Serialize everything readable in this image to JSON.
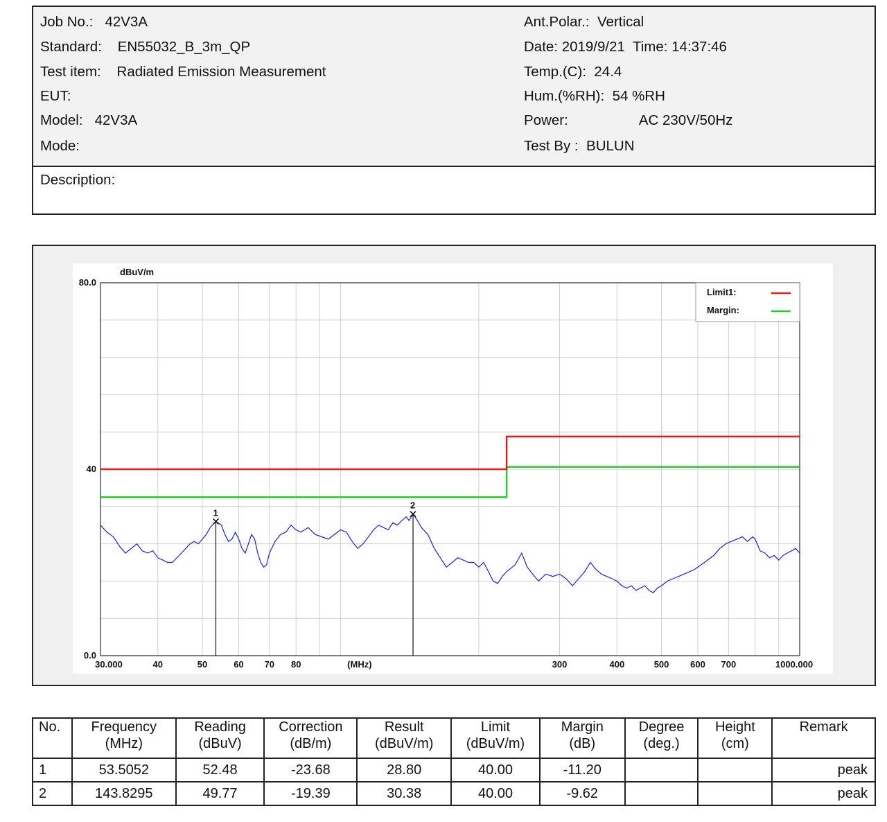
{
  "header": {
    "job_label": "Job No.:",
    "job_value": "42V3A",
    "standard_label": "Standard:",
    "standard_value": "EN55032_B_3m_QP",
    "test_item_label": "Test item:",
    "test_item_value": "Radiated Emission Measurement",
    "eut_label": "EUT:",
    "model_label": "Model:",
    "model_value": "42V3A",
    "mode_label": "Mode:",
    "ant_label": "Ant.Polar.:",
    "ant_value": "Vertical",
    "date_label": "Date:",
    "date_value": "2019/9/21",
    "time_label": "Time:",
    "time_value": "14:37:46",
    "temp_label": "Temp.(C):",
    "temp_value": "24.4",
    "hum_label": "Hum.(%RH):",
    "hum_value": "54 %RH",
    "power_label": "Power:",
    "power_value": "AC 230V/50Hz",
    "testby_label": "Test By :",
    "testby_value": "BULUN",
    "description_label": "Description:"
  },
  "chart_data": {
    "type": "line",
    "x_scale": "log",
    "xlim": [
      30,
      1000
    ],
    "ylim": [
      0,
      80
    ],
    "ylabel": "dBuV/m",
    "xlabel": "(MHz)",
    "y_tick_labels": [
      {
        "v": 80,
        "t": "80.0"
      },
      {
        "v": 40,
        "t": "40"
      },
      {
        "v": 0,
        "t": "0.0"
      }
    ],
    "x_tick_labels": [
      {
        "v": 30,
        "t": "30.000"
      },
      {
        "v": 40,
        "t": "40"
      },
      {
        "v": 50,
        "t": "50"
      },
      {
        "v": 60,
        "t": "60"
      },
      {
        "v": 70,
        "t": "70"
      },
      {
        "v": 80,
        "t": "80"
      },
      {
        "v": 300,
        "t": "300"
      },
      {
        "v": 400,
        "t": "400"
      },
      {
        "v": 500,
        "t": "500"
      },
      {
        "v": 600,
        "t": "600"
      },
      {
        "v": 700,
        "t": "700"
      },
      {
        "v": 1000,
        "t": "1000.000"
      }
    ],
    "grid": true,
    "legend_position": "top-right",
    "legend": [
      {
        "name": "Limit1:",
        "color": "#e81a1a"
      },
      {
        "name": "Margin:",
        "color": "#22cc22"
      }
    ],
    "limit_line": {
      "color": "#e81a1a",
      "points": [
        [
          30,
          40
        ],
        [
          230,
          40
        ],
        [
          230,
          47
        ],
        [
          1000,
          47
        ]
      ]
    },
    "margin_line": {
      "color": "#22cc22",
      "points": [
        [
          30,
          34
        ],
        [
          230,
          34
        ],
        [
          230,
          40.5
        ],
        [
          1000,
          40.5
        ]
      ]
    },
    "measurement_trace": {
      "color": "#1a22cc",
      "points": [
        [
          30,
          28
        ],
        [
          31,
          26.5
        ],
        [
          32,
          25.5
        ],
        [
          33,
          23.5
        ],
        [
          34,
          22
        ],
        [
          35,
          23
        ],
        [
          36,
          24
        ],
        [
          37,
          22.5
        ],
        [
          38,
          22
        ],
        [
          39,
          22.5
        ],
        [
          40,
          21
        ],
        [
          41,
          20.5
        ],
        [
          42,
          20
        ],
        [
          43,
          20
        ],
        [
          44,
          21
        ],
        [
          45,
          22
        ],
        [
          46,
          23
        ],
        [
          47,
          24
        ],
        [
          48,
          24.5
        ],
        [
          49,
          24
        ],
        [
          50,
          25
        ],
        [
          51,
          26
        ],
        [
          52,
          27.5
        ],
        [
          53.5,
          28.8
        ],
        [
          55,
          28
        ],
        [
          56,
          26
        ],
        [
          57,
          24.5
        ],
        [
          58,
          25
        ],
        [
          59,
          26.5
        ],
        [
          60,
          25
        ],
        [
          61,
          23
        ],
        [
          62,
          22
        ],
        [
          63,
          24
        ],
        [
          64,
          26
        ],
        [
          65,
          25
        ],
        [
          66,
          22
        ],
        [
          67,
          20
        ],
        [
          68,
          19
        ],
        [
          69,
          19.5
        ],
        [
          70,
          22
        ],
        [
          72,
          24.5
        ],
        [
          74,
          26
        ],
        [
          76,
          26.5
        ],
        [
          78,
          28
        ],
        [
          80,
          27
        ],
        [
          82,
          26.5
        ],
        [
          85,
          27.5
        ],
        [
          88,
          26
        ],
        [
          91,
          25.5
        ],
        [
          94,
          25
        ],
        [
          97,
          26
        ],
        [
          100,
          27
        ],
        [
          103,
          26.5
        ],
        [
          106,
          24.5
        ],
        [
          109,
          23
        ],
        [
          112,
          24
        ],
        [
          115,
          25.5
        ],
        [
          118,
          27
        ],
        [
          121,
          28
        ],
        [
          124,
          27.5
        ],
        [
          127,
          27
        ],
        [
          130,
          28.5
        ],
        [
          133,
          28
        ],
        [
          136,
          29
        ],
        [
          139,
          29.8
        ],
        [
          141,
          29
        ],
        [
          143.8,
          30.4
        ],
        [
          147,
          29
        ],
        [
          150,
          27.5
        ],
        [
          155,
          26
        ],
        [
          160,
          23
        ],
        [
          165,
          21
        ],
        [
          170,
          19
        ],
        [
          175,
          20
        ],
        [
          180,
          21
        ],
        [
          185,
          20.5
        ],
        [
          190,
          20
        ],
        [
          195,
          20
        ],
        [
          200,
          19
        ],
        [
          205,
          20
        ],
        [
          210,
          18
        ],
        [
          215,
          16
        ],
        [
          220,
          15.5
        ],
        [
          225,
          17
        ],
        [
          230,
          18
        ],
        [
          240,
          19.5
        ],
        [
          248,
          22
        ],
        [
          255,
          19
        ],
        [
          262,
          17.5
        ],
        [
          270,
          16
        ],
        [
          280,
          17.5
        ],
        [
          290,
          17
        ],
        [
          300,
          17.5
        ],
        [
          310,
          16.5
        ],
        [
          320,
          15
        ],
        [
          330,
          16.5
        ],
        [
          340,
          18
        ],
        [
          350,
          20
        ],
        [
          360,
          18.5
        ],
        [
          370,
          17.5
        ],
        [
          380,
          17
        ],
        [
          390,
          16.5
        ],
        [
          400,
          16
        ],
        [
          410,
          15
        ],
        [
          420,
          14.5
        ],
        [
          430,
          15
        ],
        [
          440,
          14
        ],
        [
          450,
          14.5
        ],
        [
          460,
          15
        ],
        [
          470,
          14
        ],
        [
          480,
          13.5
        ],
        [
          490,
          14.5
        ],
        [
          500,
          15
        ],
        [
          515,
          16
        ],
        [
          530,
          16.5
        ],
        [
          545,
          17
        ],
        [
          560,
          17.5
        ],
        [
          575,
          18
        ],
        [
          590,
          18.5
        ],
        [
          610,
          19.5
        ],
        [
          630,
          20.5
        ],
        [
          650,
          21.5
        ],
        [
          670,
          23
        ],
        [
          690,
          24
        ],
        [
          710,
          24.5
        ],
        [
          730,
          25
        ],
        [
          750,
          25.5
        ],
        [
          770,
          24.5
        ],
        [
          790,
          25.5
        ],
        [
          800,
          25
        ],
        [
          820,
          22.5
        ],
        [
          840,
          22
        ],
        [
          860,
          21
        ],
        [
          880,
          21.5
        ],
        [
          900,
          20.5
        ],
        [
          920,
          21.5
        ],
        [
          940,
          22
        ],
        [
          960,
          22.5
        ],
        [
          980,
          23
        ],
        [
          1000,
          22
        ]
      ]
    },
    "markers": [
      {
        "label": "1",
        "x": 53.5052,
        "y": 28.8
      },
      {
        "label": "2",
        "x": 143.8295,
        "y": 30.38
      }
    ]
  },
  "table": {
    "headers": [
      [
        "No.",
        ""
      ],
      [
        "Frequency",
        "(MHz)"
      ],
      [
        "Reading",
        "(dBuV)"
      ],
      [
        "Correction",
        "(dB/m)"
      ],
      [
        "Result",
        "(dBuV/m)"
      ],
      [
        "Limit",
        "(dBuV/m)"
      ],
      [
        "Margin",
        "(dB)"
      ],
      [
        "Degree",
        "(deg.)"
      ],
      [
        "Height",
        "(cm)"
      ],
      [
        "Remark",
        ""
      ]
    ],
    "rows": [
      [
        "1",
        "53.5052",
        "52.48",
        "-23.68",
        "28.80",
        "40.00",
        "-11.20",
        "",
        "",
        "peak"
      ],
      [
        "2",
        "143.8295",
        "49.77",
        "-19.39",
        "30.38",
        "40.00",
        "-9.62",
        "",
        "",
        "peak"
      ]
    ]
  }
}
